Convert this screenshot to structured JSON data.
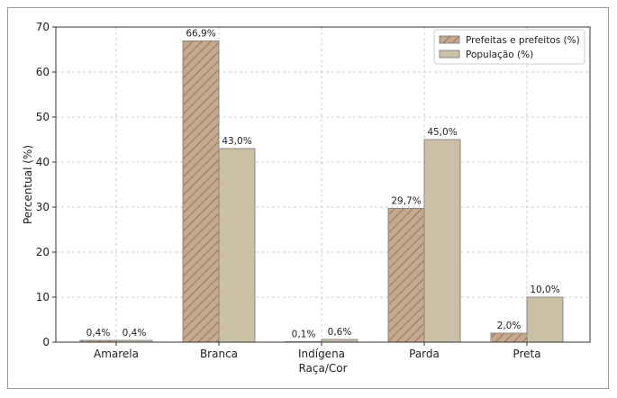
{
  "chart_data": {
    "type": "bar",
    "title": "",
    "xlabel": "Raça/Cor",
    "ylabel": "Percentual (%)",
    "ylim": [
      0,
      70
    ],
    "yticks": [
      0,
      10,
      20,
      30,
      40,
      50,
      60,
      70
    ],
    "grid": true,
    "legend_position": "top-right",
    "categories": [
      "Amarela",
      "Branca",
      "Indígena",
      "Parda",
      "Preta"
    ],
    "series": [
      {
        "name": "Prefeitas e prefeitos (%)",
        "values": [
          0.4,
          66.9,
          0.1,
          29.7,
          2.0
        ],
        "labels": [
          "0,4%",
          "66,9%",
          "0,1%",
          "29,7%",
          "2,0%"
        ],
        "color": "#c8a88a",
        "hatch": true
      },
      {
        "name": "População (%)",
        "values": [
          0.4,
          43.0,
          0.6,
          45.0,
          10.0
        ],
        "labels": [
          "0,4%",
          "43,0%",
          "0,6%",
          "45,0%",
          "10,0%"
        ],
        "color": "#cbbfa6",
        "hatch": false
      }
    ]
  }
}
